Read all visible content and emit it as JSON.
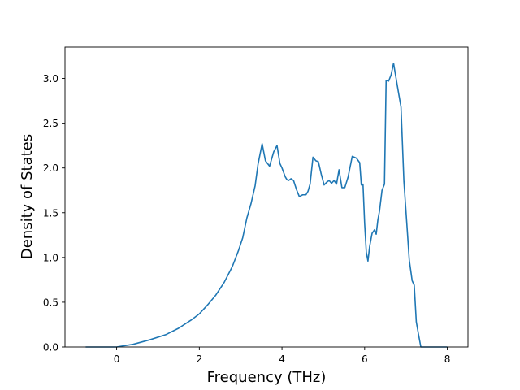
{
  "chart_data": {
    "type": "line",
    "title": "",
    "xlabel": "Frequency (THz)",
    "ylabel": "Density of States",
    "xlim": [
      -1.25,
      8.5
    ],
    "ylim": [
      0.0,
      3.35
    ],
    "xticks": [
      0,
      2,
      4,
      6,
      8
    ],
    "yticks": [
      0.0,
      0.5,
      1.0,
      1.5,
      2.0,
      2.5,
      3.0
    ],
    "xtick_labels": [
      "0",
      "2",
      "4",
      "6",
      "8"
    ],
    "ytick_labels": [
      "0.0",
      "0.5",
      "1.0",
      "1.5",
      "2.0",
      "2.5",
      "3.0"
    ],
    "grid": false,
    "line_color": "#1f77b4",
    "series": [
      {
        "x": [
          -0.75,
          -0.2,
          0.0,
          0.4,
          0.8,
          1.2,
          1.5,
          1.8,
          2.0,
          2.2,
          2.4,
          2.6,
          2.8,
          2.95,
          3.05,
          3.15,
          3.25,
          3.35,
          3.42,
          3.52,
          3.6,
          3.7,
          3.8,
          3.88,
          3.95,
          4.0,
          4.08,
          4.12,
          4.16,
          4.22,
          4.28,
          4.35,
          4.42,
          4.5,
          4.58,
          4.63,
          4.68,
          4.75,
          4.82,
          4.88,
          4.95,
          5.02,
          5.08,
          5.14,
          5.2,
          5.26,
          5.32,
          5.38,
          5.45,
          5.52,
          5.6,
          5.7,
          5.8,
          5.88,
          5.92,
          5.96,
          6.0,
          6.04,
          6.08,
          6.12,
          6.18,
          6.24,
          6.28,
          6.32,
          6.36,
          6.42,
          6.48,
          6.52,
          6.58,
          6.64,
          6.7,
          6.75,
          6.82,
          6.88,
          6.95,
          7.02,
          7.08,
          7.15,
          7.2,
          7.25,
          7.3,
          7.36,
          7.5,
          8.0
        ],
        "y": [
          0.0,
          0.0,
          0.0,
          0.03,
          0.08,
          0.14,
          0.21,
          0.3,
          0.37,
          0.47,
          0.58,
          0.72,
          0.9,
          1.08,
          1.22,
          1.44,
          1.6,
          1.8,
          2.04,
          2.27,
          2.08,
          2.02,
          2.18,
          2.25,
          2.05,
          2.0,
          1.9,
          1.87,
          1.86,
          1.88,
          1.86,
          1.76,
          1.68,
          1.7,
          1.7,
          1.74,
          1.82,
          2.12,
          2.08,
          2.07,
          1.93,
          1.81,
          1.84,
          1.86,
          1.83,
          1.86,
          1.82,
          1.98,
          1.78,
          1.78,
          1.9,
          2.13,
          2.11,
          2.06,
          1.81,
          1.82,
          1.38,
          1.06,
          0.96,
          1.12,
          1.27,
          1.31,
          1.26,
          1.42,
          1.52,
          1.75,
          1.82,
          2.98,
          2.97,
          3.04,
          3.17,
          3.03,
          2.84,
          2.68,
          1.85,
          1.38,
          0.97,
          0.74,
          0.69,
          0.28,
          0.15,
          0.0,
          0.0,
          0.0
        ]
      }
    ]
  }
}
